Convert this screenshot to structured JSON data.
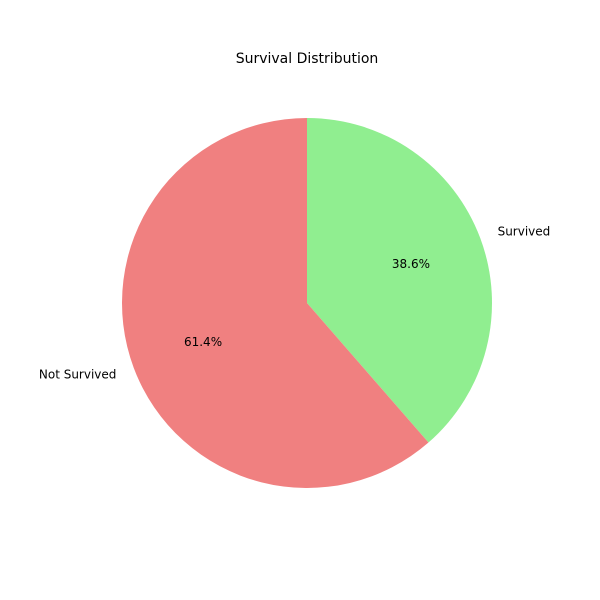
{
  "chart_data": {
    "type": "pie",
    "title": "Survival Distribution",
    "start_angle_deg": 90,
    "direction": "clockwise",
    "slices": [
      {
        "label": "Survived",
        "value": 38.6,
        "pct_label": "38.6%",
        "color": "#90EE90"
      },
      {
        "label": "Not Survived",
        "value": 61.4,
        "pct_label": "61.4%",
        "color": "#F08080"
      }
    ]
  }
}
